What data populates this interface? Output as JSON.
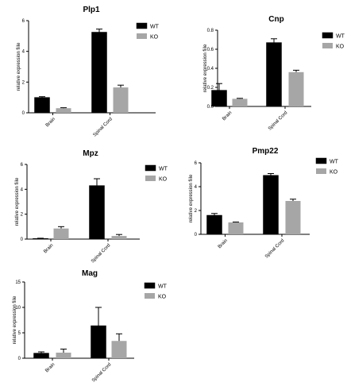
{
  "colors": {
    "wt": "#000000",
    "ko": "#a6a6a6",
    "axis": "#000000"
  },
  "chart_data": [
    {
      "type": "bar",
      "title": "Plp1",
      "ylabel": "relative expression fiile",
      "categories": [
        "Brain",
        "Spinal Cord"
      ],
      "ylim": [
        0,
        6
      ],
      "yticks": [
        "0",
        "2",
        "4",
        "6"
      ],
      "series": [
        {
          "name": "WT",
          "values": [
            1.0,
            5.25
          ],
          "errors": [
            0.05,
            0.2
          ]
        },
        {
          "name": "KO",
          "values": [
            0.3,
            1.65
          ],
          "errors": [
            0.03,
            0.15
          ]
        }
      ],
      "legend": "top-right"
    },
    {
      "type": "bar",
      "title": "Cnp",
      "ylabel": "relative expression fiile",
      "categories": [
        "Brain",
        "Spinal Cord"
      ],
      "ylim": [
        0,
        0.8
      ],
      "yticks": [
        "0.0",
        "0.2",
        "0.4",
        "0.6",
        "0.8"
      ],
      "series": [
        {
          "name": "WT",
          "values": [
            0.17,
            0.67
          ],
          "errors": [
            0.07,
            0.04
          ]
        },
        {
          "name": "KO",
          "values": [
            0.08,
            0.36
          ],
          "errors": [
            0.005,
            0.02
          ]
        }
      ],
      "legend": "top-right"
    },
    {
      "type": "bar",
      "title": "Mpz",
      "ylabel": "relative expression fiile",
      "categories": [
        "Brain",
        "Spinal Cord"
      ],
      "ylim": [
        0,
        6
      ],
      "yticks": [
        "0",
        "2",
        "4",
        "6"
      ],
      "series": [
        {
          "name": "WT",
          "values": [
            0.05,
            4.3
          ],
          "errors": [
            0.02,
            0.55
          ]
        },
        {
          "name": "KO",
          "values": [
            0.85,
            0.25
          ],
          "errors": [
            0.15,
            0.12
          ]
        }
      ],
      "legend": "top-right"
    },
    {
      "type": "bar",
      "title": "Pmp22",
      "ylabel": "relative expression fiile",
      "categories": [
        "Brain",
        "Spinal Cord"
      ],
      "ylim": [
        0,
        6
      ],
      "yticks": [
        "0",
        "2",
        "4",
        "6"
      ],
      "series": [
        {
          "name": "WT",
          "values": [
            1.6,
            4.95
          ],
          "errors": [
            0.15,
            0.15
          ]
        },
        {
          "name": "KO",
          "values": [
            1.0,
            2.8
          ],
          "errors": [
            0.03,
            0.15
          ]
        }
      ],
      "legend": "top-right"
    },
    {
      "type": "bar",
      "title": "Mag",
      "ylabel": "relative expression fiile",
      "categories": [
        "Brain",
        "Spinal Cord"
      ],
      "ylim": [
        0,
        15
      ],
      "yticks": [
        "0",
        "5",
        "10",
        "15"
      ],
      "series": [
        {
          "name": "WT",
          "values": [
            1.0,
            6.4
          ],
          "errors": [
            0.25,
            3.6
          ]
        },
        {
          "name": "KO",
          "values": [
            1.1,
            3.4
          ],
          "errors": [
            0.7,
            1.4
          ]
        }
      ],
      "legend": "top-right"
    }
  ]
}
